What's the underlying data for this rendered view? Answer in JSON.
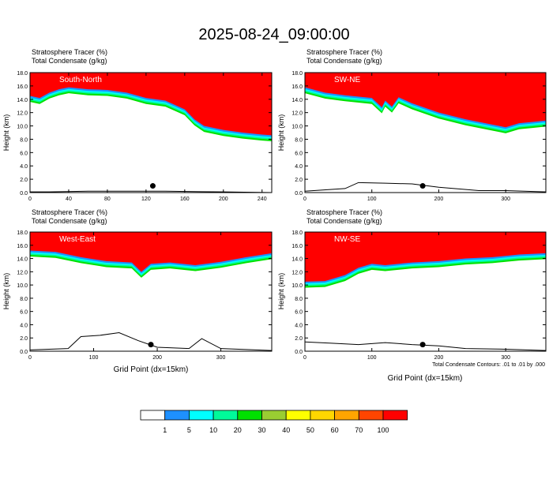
{
  "page_title": "2025-08-24_09:00:00",
  "footnote": "Total Condensate Contours: .01 to .01 by .000",
  "xlabel": "Grid Point (dx=15km)",
  "chart_data": [
    {
      "type": "heatmap",
      "label": "South-North",
      "line1": "Stratosphere Tracer   (%)",
      "line2": "Total Condensate   (g/kg)",
      "ylabel": "Height (km)",
      "xlabel": "",
      "xlim": [
        0,
        250
      ],
      "xticks": [
        0,
        40,
        80,
        120,
        160,
        200,
        240
      ],
      "ylim": [
        0,
        18
      ],
      "yticks": [
        0.0,
        2.0,
        4.0,
        6.0,
        8.0,
        10.0,
        12.0,
        14.0,
        16.0,
        18.0
      ],
      "tropopause_x": [
        0,
        10,
        20,
        30,
        40,
        60,
        80,
        100,
        120,
        140,
        160,
        170,
        180,
        200,
        220,
        240,
        250
      ],
      "tropopause_y": [
        14.5,
        14.2,
        15.0,
        15.5,
        15.8,
        15.5,
        15.4,
        15.0,
        14.2,
        13.8,
        12.5,
        11.0,
        10.0,
        9.4,
        9.0,
        8.7,
        8.6
      ],
      "terrain_x": [
        0,
        20,
        60,
        100,
        140,
        200,
        250
      ],
      "terrain_y": [
        0.1,
        0.1,
        0.2,
        0.2,
        0.2,
        0.1,
        0.0
      ],
      "marker_x": 127,
      "marker_y": 1.0
    },
    {
      "type": "heatmap",
      "label": "SW-NE",
      "line1": "Stratosphere Tracer   (%)",
      "line2": "Total Condensate   (g/kg)",
      "ylabel": "Height (km)",
      "xlabel": "",
      "xlim": [
        0,
        360
      ],
      "xticks": [
        0,
        100,
        200,
        300
      ],
      "ylim": [
        0,
        18
      ],
      "yticks": [
        0.0,
        2.0,
        4.0,
        6.0,
        8.0,
        10.0,
        12.0,
        14.0,
        16.0,
        18.0
      ],
      "tropopause_x": [
        0,
        30,
        60,
        100,
        115,
        120,
        130,
        140,
        160,
        200,
        240,
        280,
        300,
        320,
        340,
        360
      ],
      "tropopause_y": [
        15.8,
        15.0,
        14.6,
        14.2,
        12.8,
        13.8,
        12.9,
        14.3,
        13.4,
        12.0,
        11.0,
        10.2,
        9.8,
        10.4,
        10.6,
        10.8
      ],
      "terrain_x": [
        0,
        60,
        80,
        120,
        160,
        200,
        260,
        300,
        360
      ],
      "terrain_y": [
        0.2,
        0.6,
        1.5,
        1.4,
        1.3,
        0.8,
        0.3,
        0.3,
        0.1
      ],
      "marker_x": 176,
      "marker_y": 1.0
    },
    {
      "type": "heatmap",
      "label": "West-East",
      "line1": "Stratosphere Tracer   (%)",
      "line2": "Total Condensate   (g/kg)",
      "ylabel": "Height (km)",
      "xlabel": "",
      "xlim": [
        0,
        380
      ],
      "xticks": [
        0,
        100,
        200,
        300
      ],
      "ylim": [
        0,
        18
      ],
      "yticks": [
        0.0,
        2.0,
        4.0,
        6.0,
        8.0,
        10.0,
        12.0,
        14.0,
        16.0,
        18.0
      ],
      "tropopause_x": [
        0,
        40,
        80,
        120,
        160,
        175,
        190,
        220,
        260,
        300,
        340,
        380
      ],
      "tropopause_y": [
        15.2,
        15.0,
        14.2,
        13.6,
        13.4,
        12.0,
        13.2,
        13.4,
        13.0,
        13.5,
        14.2,
        14.8
      ],
      "terrain_x": [
        0,
        60,
        80,
        110,
        140,
        170,
        200,
        250,
        270,
        300,
        380
      ],
      "terrain_y": [
        0.2,
        0.4,
        2.2,
        2.4,
        2.8,
        1.6,
        0.6,
        0.4,
        1.9,
        0.4,
        0.1
      ],
      "marker_x": 190,
      "marker_y": 1.0
    },
    {
      "type": "heatmap",
      "label": "NW-SE",
      "line1": "Stratosphere Tracer   (%)",
      "line2": "Total Condensate   (g/kg)",
      "ylabel": "Height (km)",
      "xlabel": "Grid Point (dx=15km)",
      "xlim": [
        0,
        360
      ],
      "xticks": [
        0,
        100,
        200,
        300
      ],
      "ylim": [
        0,
        18
      ],
      "yticks": [
        0.0,
        2.0,
        4.0,
        6.0,
        8.0,
        10.0,
        12.0,
        14.0,
        16.0,
        18.0
      ],
      "tropopause_x": [
        0,
        30,
        60,
        80,
        100,
        120,
        160,
        200,
        240,
        280,
        320,
        360
      ],
      "tropopause_y": [
        10.5,
        10.6,
        11.5,
        12.6,
        13.2,
        13.0,
        13.4,
        13.6,
        14.0,
        14.2,
        14.6,
        14.8
      ],
      "terrain_x": [
        0,
        40,
        80,
        120,
        160,
        200,
        240,
        300,
        360
      ],
      "terrain_y": [
        1.4,
        1.2,
        1.0,
        1.3,
        1.0,
        0.8,
        0.4,
        0.3,
        0.1
      ],
      "marker_x": 176,
      "marker_y": 1.0
    }
  ],
  "colorbar": {
    "labels": [
      "1",
      "5",
      "10",
      "20",
      "30",
      "40",
      "50",
      "60",
      "70",
      "100"
    ],
    "colors": [
      "#ffffff",
      "#1e90ff",
      "#00ffff",
      "#00fa9a",
      "#00e100",
      "#9acd32",
      "#ffff00",
      "#ffd700",
      "#ffa500",
      "#ff4500",
      "#ff0000"
    ]
  }
}
